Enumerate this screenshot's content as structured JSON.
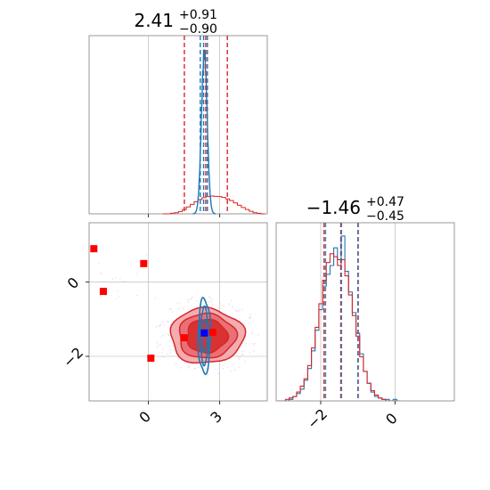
{
  "chart_data": {
    "type": "corner",
    "colors": {
      "red": "#d62728",
      "blue": "#1f77b4",
      "marker_blue": "#0000ff",
      "marker_red": "#ff0000",
      "grid": "#b0b0b0",
      "axis": "#808080"
    },
    "params": [
      {
        "median": 2.41,
        "plus": "+0.91",
        "minus": "−0.90",
        "title": "2.41",
        "range": [
          -2.5,
          5.0
        ],
        "ticks": [
          0,
          3
        ],
        "tick_labels": [
          "0",
          "3"
        ]
      },
      {
        "median": -1.46,
        "plus": "+0.47",
        "minus": "−0.45",
        "title": "−1.46",
        "range": [
          -3.2,
          1.6
        ],
        "ticks": [
          -2,
          0
        ],
        "tick_labels": [
          "−2",
          "0"
        ]
      }
    ],
    "hist_top": {
      "red_quantiles": [
        1.51,
        2.41,
        3.32
      ],
      "blue_quantiles": [
        2.18,
        2.32,
        2.48
      ],
      "red_counts": [
        0,
        0,
        0.2,
        0.4,
        0.8,
        1.5,
        2.4,
        3.3,
        4.2,
        5.0,
        5.6,
        6.0,
        6.2,
        6.1,
        6.0,
        5.7,
        5.2,
        4.6,
        3.8,
        3.0,
        2.2,
        1.5,
        0.9,
        0.4,
        0.2,
        0
      ],
      "red_x_start": 0.6,
      "red_x_end": 4.9,
      "blue_mode": 2.35,
      "blue_width": 0.12,
      "blue_peak": 1.0,
      "red_peak": 0.1
    },
    "hist_right": {
      "red_quantiles": [
        -1.91,
        -1.46,
        -0.99
      ],
      "blue_quantiles": [
        -1.87,
        -1.44,
        -1.0
      ],
      "bins_x": [
        -3.1,
        -3.0,
        -2.9,
        -2.8,
        -2.7,
        -2.6,
        -2.5,
        -2.4,
        -2.3,
        -2.2,
        -2.1,
        -2.0,
        -1.9,
        -1.8,
        -1.7,
        -1.6,
        -1.5,
        -1.4,
        -1.3,
        -1.2,
        -1.1,
        -1.0,
        -0.9,
        -0.8,
        -0.7,
        -0.6,
        -0.5,
        -0.4,
        -0.3,
        -0.2,
        -0.1,
        0.0,
        0.1
      ],
      "red_counts": [
        0,
        0,
        1,
        2,
        3,
        6,
        10,
        15,
        24,
        36,
        50,
        66,
        82,
        94,
        100,
        98,
        92,
        96,
        85,
        72,
        58,
        44,
        30,
        20,
        12,
        7,
        4,
        2,
        1,
        0,
        0,
        0,
        0
      ],
      "blue_counts": [
        0,
        0,
        0,
        1,
        3,
        5,
        8,
        14,
        22,
        34,
        48,
        62,
        78,
        86,
        92,
        104,
        96,
        112,
        88,
        74,
        60,
        46,
        32,
        20,
        12,
        6,
        3,
        2,
        1,
        1,
        0,
        1,
        0
      ],
      "y_max": 115
    },
    "scatter": {
      "red_points": [
        [
          -2.3,
          0.9
        ],
        [
          -1.9,
          -0.25
        ],
        [
          -0.2,
          0.5
        ],
        [
          0.1,
          -2.05
        ],
        [
          1.5,
          -1.5
        ],
        [
          2.7,
          -1.35
        ]
      ],
      "blue_point": [
        2.35,
        -1.37
      ],
      "red_contours": [
        {
          "cx": 2.45,
          "cy": -1.45,
          "rx": 1.55,
          "ry": 0.74,
          "level": "outer"
        },
        {
          "cx": 2.45,
          "cy": -1.45,
          "rx": 1.2,
          "ry": 0.6,
          "level": "mid"
        },
        {
          "cx": 2.45,
          "cy": -1.45,
          "rx": 0.85,
          "ry": 0.45,
          "level": "inner"
        }
      ],
      "blue_contours": [
        {
          "cx": 2.35,
          "cy": -1.45,
          "rx": 0.26,
          "ry": 1.0
        },
        {
          "cx": 2.35,
          "cy": -1.45,
          "rx": 0.18,
          "ry": 0.75
        },
        {
          "cx": 2.35,
          "cy": -1.45,
          "rx": 0.1,
          "ry": 0.45
        }
      ]
    }
  }
}
